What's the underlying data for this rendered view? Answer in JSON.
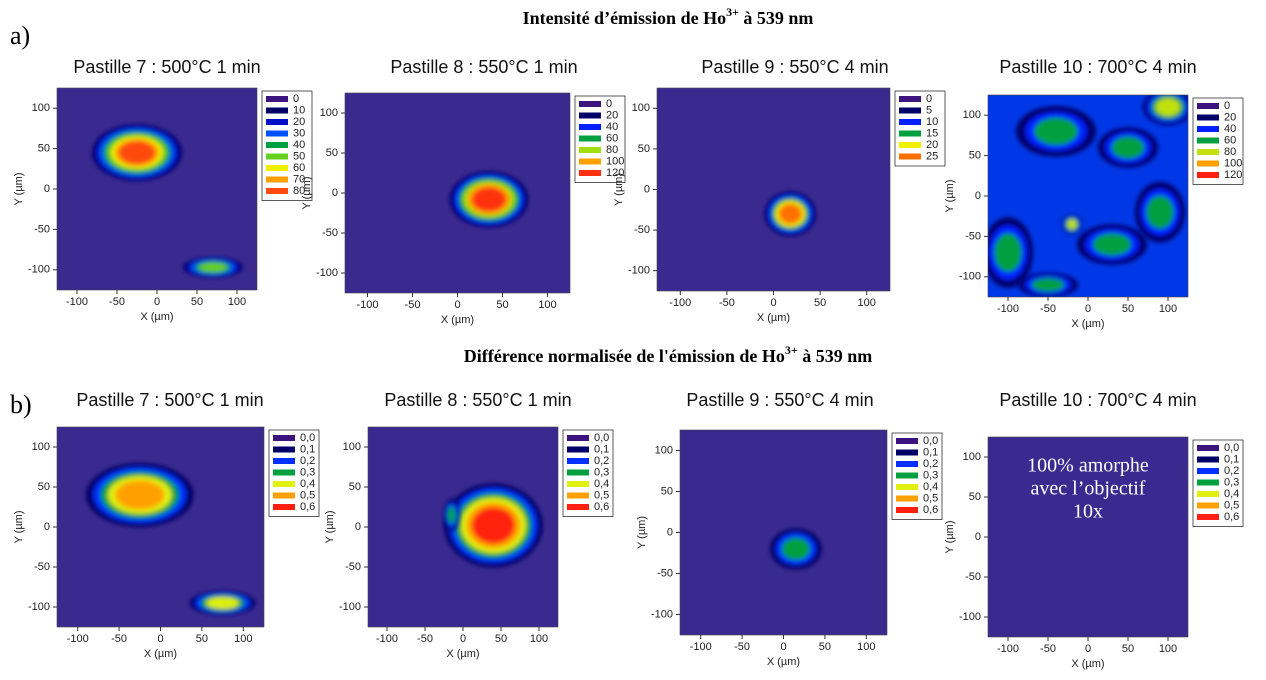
{
  "sections": [
    {
      "label": "a)",
      "title_parts": [
        "Intensité d’émission de Ho",
        "3+",
        " à 539 nm"
      ]
    },
    {
      "label": "b)",
      "title_parts": [
        "Différence normalisée de l'émission de Ho",
        "3+",
        " à 539 nm"
      ]
    }
  ],
  "chart_data": [
    {
      "type": "heatmap",
      "title": "Pastille 7 : 500°C 1 min",
      "x_label": "X (µm)",
      "y_label": "Y (µm)",
      "xlim": [
        -125,
        125
      ],
      "ylim": [
        -125,
        125
      ],
      "xticks": [
        -100,
        -50,
        0,
        50,
        100
      ],
      "yticks": [
        -100,
        -50,
        0,
        50,
        100
      ],
      "background": "#3a2a90",
      "levels": [
        {
          "value": 0,
          "color": "#3c1480"
        },
        {
          "value": 10,
          "color": "#000066"
        },
        {
          "value": 20,
          "color": "#0010c8"
        },
        {
          "value": 30,
          "color": "#0050ff"
        },
        {
          "value": 40,
          "color": "#00a040"
        },
        {
          "value": 50,
          "color": "#66d020"
        },
        {
          "value": 60,
          "color": "#f0f000"
        },
        {
          "value": 70,
          "color": "#ffa000"
        },
        {
          "value": 80,
          "color": "#ff4a10"
        }
      ],
      "hotspots": [
        {
          "x": -25,
          "y": 45,
          "rx": 45,
          "ry": 28,
          "peak": 80
        },
        {
          "x": 70,
          "y": -97,
          "rx": 30,
          "ry": 10,
          "peak": 50
        }
      ]
    },
    {
      "type": "heatmap",
      "title": "Pastille 8 : 550°C 1 min",
      "x_label": "X (µm)",
      "y_label": "Y (µm)",
      "xlim": [
        -125,
        125
      ],
      "ylim": [
        -125,
        125
      ],
      "xticks": [
        -100,
        -50,
        0,
        50,
        100
      ],
      "yticks": [
        -100,
        -50,
        0,
        50,
        100
      ],
      "background": "#3a2a90",
      "levels": [
        {
          "value": 0,
          "color": "#3c1480"
        },
        {
          "value": 20,
          "color": "#000066"
        },
        {
          "value": 40,
          "color": "#0020ff"
        },
        {
          "value": 60,
          "color": "#00a040"
        },
        {
          "value": 80,
          "color": "#a0e010"
        },
        {
          "value": 100,
          "color": "#ffa000"
        },
        {
          "value": 120,
          "color": "#ff3010"
        }
      ],
      "hotspots": [
        {
          "x": 35,
          "y": -8,
          "rx": 35,
          "ry": 28,
          "peak": 120
        }
      ]
    },
    {
      "type": "heatmap",
      "title": "Pastille 9 : 550°C 4 min",
      "x_label": "X (µm)",
      "y_label": "Y (µm)",
      "xlim": [
        -125,
        125
      ],
      "ylim": [
        -125,
        125
      ],
      "xticks": [
        -100,
        -50,
        0,
        50,
        100
      ],
      "yticks": [
        -100,
        -50,
        0,
        50,
        100
      ],
      "background": "#3a2a90",
      "levels": [
        {
          "value": 0,
          "color": "#3c1480"
        },
        {
          "value": 5,
          "color": "#000066"
        },
        {
          "value": 10,
          "color": "#0020ff"
        },
        {
          "value": 15,
          "color": "#00a040"
        },
        {
          "value": 20,
          "color": "#f0f000"
        },
        {
          "value": 25,
          "color": "#ff7000"
        }
      ],
      "hotspots": [
        {
          "x": 18,
          "y": -30,
          "rx": 22,
          "ry": 22,
          "peak": 25
        }
      ]
    },
    {
      "type": "heatmap",
      "title": "Pastille 10 : 700°C 4 min",
      "x_label": "X (µm)",
      "y_label": "Y (µm)",
      "xlim": [
        -125,
        125
      ],
      "ylim": [
        -125,
        125
      ],
      "xticks": [
        -100,
        -50,
        0,
        50,
        100
      ],
      "yticks": [
        -100,
        -50,
        0,
        50,
        100
      ],
      "background": "#0038e8",
      "levels": [
        {
          "value": 0,
          "color": "#3c1480"
        },
        {
          "value": 20,
          "color": "#000066"
        },
        {
          "value": 40,
          "color": "#0020ff"
        },
        {
          "value": 60,
          "color": "#00a040"
        },
        {
          "value": 80,
          "color": "#c0e010"
        },
        {
          "value": 100,
          "color": "#ffa000"
        },
        {
          "value": 120,
          "color": "#ff2010"
        }
      ],
      "hotspots": [
        {
          "x": 100,
          "y": 110,
          "rx": 25,
          "ry": 18,
          "peak": 80
        },
        {
          "x": -40,
          "y": 80,
          "rx": 40,
          "ry": 25,
          "peak": 60
        },
        {
          "x": 50,
          "y": 60,
          "rx": 30,
          "ry": 20,
          "peak": 60
        },
        {
          "x": -100,
          "y": -70,
          "rx": 25,
          "ry": 35,
          "peak": 60
        },
        {
          "x": 30,
          "y": -60,
          "rx": 35,
          "ry": 20,
          "peak": 60
        },
        {
          "x": 90,
          "y": -20,
          "rx": 25,
          "ry": 30,
          "peak": 60
        },
        {
          "x": -20,
          "y": -35,
          "rx": 10,
          "ry": 10,
          "peak": 80
        },
        {
          "x": -50,
          "y": -110,
          "rx": 30,
          "ry": 12,
          "peak": 60
        }
      ]
    },
    {
      "type": "heatmap",
      "title": "Pastille 7 : 500°C 1 min",
      "x_label": "X (µm)",
      "y_label": "Y (µm)",
      "xlim": [
        -125,
        125
      ],
      "ylim": [
        -125,
        125
      ],
      "xticks": [
        -100,
        -50,
        0,
        50,
        100
      ],
      "yticks": [
        -100,
        -50,
        0,
        50,
        100
      ],
      "background": "#3a2a90",
      "levels": [
        {
          "value": 0,
          "label": "0,0",
          "color": "#3c1480"
        },
        {
          "value": 0.1,
          "label": "0,1",
          "color": "#000066"
        },
        {
          "value": 0.2,
          "label": "0,2",
          "color": "#0030ff"
        },
        {
          "value": 0.3,
          "label": "0,3",
          "color": "#00a040"
        },
        {
          "value": 0.4,
          "label": "0,4",
          "color": "#e0f010"
        },
        {
          "value": 0.5,
          "label": "0,5",
          "color": "#ffa000"
        },
        {
          "value": 0.6,
          "label": "0,6",
          "color": "#ff2010"
        }
      ],
      "hotspots": [
        {
          "x": -25,
          "y": 40,
          "rx": 52,
          "ry": 32,
          "peak": 0.5
        },
        {
          "x": 75,
          "y": -95,
          "rx": 32,
          "ry": 12,
          "peak": 0.4
        }
      ]
    },
    {
      "type": "heatmap",
      "title": "Pastille 8 : 550°C 1 min",
      "x_label": "X (µm)",
      "y_label": "Y (µm)",
      "xlim": [
        -125,
        125
      ],
      "ylim": [
        -125,
        125
      ],
      "xticks": [
        -100,
        -50,
        0,
        50,
        100
      ],
      "yticks": [
        -100,
        -50,
        0,
        50,
        100
      ],
      "background": "#3a2a90",
      "levels": [
        {
          "value": 0,
          "label": "0,0",
          "color": "#3c1480"
        },
        {
          "value": 0.1,
          "label": "0,1",
          "color": "#000066"
        },
        {
          "value": 0.2,
          "label": "0,2",
          "color": "#0030ff"
        },
        {
          "value": 0.3,
          "label": "0,3",
          "color": "#00a040"
        },
        {
          "value": 0.4,
          "label": "0,4",
          "color": "#e0f010"
        },
        {
          "value": 0.5,
          "label": "0,5",
          "color": "#ffa000"
        },
        {
          "value": 0.6,
          "label": "0,6",
          "color": "#ff2010"
        }
      ],
      "hotspots": [
        {
          "x": 40,
          "y": 2,
          "rx": 52,
          "ry": 42,
          "peak": 0.6
        },
        {
          "x": -15,
          "y": 15,
          "rx": 8,
          "ry": 16,
          "peak": 0.3
        }
      ]
    },
    {
      "type": "heatmap",
      "title": "Pastille 9 : 550°C 4 min",
      "x_label": "X (µm)",
      "y_label": "Y (µm)",
      "xlim": [
        -125,
        125
      ],
      "ylim": [
        -125,
        125
      ],
      "xticks": [
        -100,
        -50,
        0,
        50,
        100
      ],
      "yticks": [
        -100,
        -50,
        0,
        50,
        100
      ],
      "background": "#3a2a90",
      "levels": [
        {
          "value": 0,
          "label": "0,0",
          "color": "#3c1480"
        },
        {
          "value": 0.1,
          "label": "0,1",
          "color": "#000066"
        },
        {
          "value": 0.2,
          "label": "0,2",
          "color": "#0030ff"
        },
        {
          "value": 0.3,
          "label": "0,3",
          "color": "#00a040"
        },
        {
          "value": 0.4,
          "label": "0,4",
          "color": "#e0f010"
        },
        {
          "value": 0.5,
          "label": "0,5",
          "color": "#ffa000"
        },
        {
          "value": 0.6,
          "label": "0,6",
          "color": "#ff2010"
        }
      ],
      "hotspots": [
        {
          "x": 15,
          "y": -20,
          "rx": 25,
          "ry": 20,
          "peak": 0.3
        }
      ]
    },
    {
      "type": "heatmap",
      "title": "Pastille 10 : 700°C 4 min",
      "x_label": "X (µm)",
      "y_label": "Y (µm)",
      "xlim": [
        -125,
        125
      ],
      "ylim": [
        -125,
        125
      ],
      "xticks": [
        -100,
        -50,
        0,
        50,
        100
      ],
      "yticks": [
        -100,
        -50,
        0,
        50,
        100
      ],
      "background": "#3a2a90",
      "levels": [
        {
          "value": 0,
          "label": "0,0",
          "color": "#3c1480"
        },
        {
          "value": 0.1,
          "label": "0,1",
          "color": "#000066"
        },
        {
          "value": 0.2,
          "label": "0,2",
          "color": "#0030ff"
        },
        {
          "value": 0.3,
          "label": "0,3",
          "color": "#00a040"
        },
        {
          "value": 0.4,
          "label": "0,4",
          "color": "#e0f010"
        },
        {
          "value": 0.5,
          "label": "0,5",
          "color": "#ffa000"
        },
        {
          "value": 0.6,
          "label": "0,6",
          "color": "#ff2010"
        }
      ],
      "hotspots": [],
      "annotation": [
        "100% amorphe",
        "avec l’objectif",
        "10x"
      ]
    }
  ]
}
